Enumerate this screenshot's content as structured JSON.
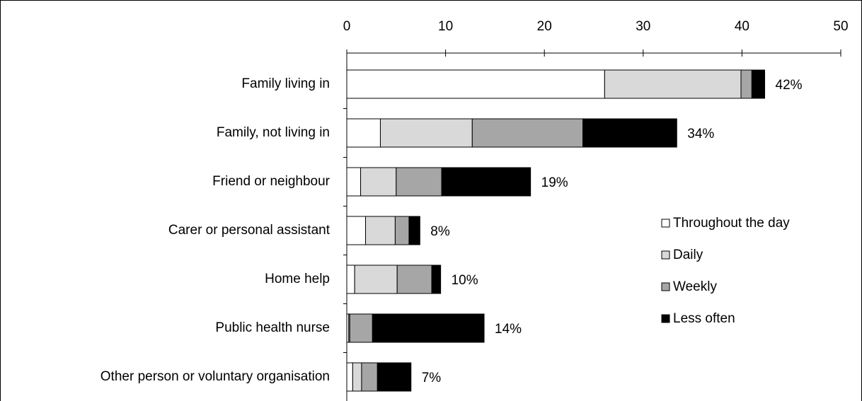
{
  "chart_data": {
    "type": "stacked_barh",
    "categories": [
      "Family living in",
      "Family, not living in",
      "Friend or neighbour",
      "Carer or personal assistant",
      "Home help",
      "Public health nurse",
      "Other person or voluntary organisation"
    ],
    "series": [
      {
        "name": "Throughout the day",
        "color": "#ffffff",
        "values": [
          26.1,
          3.4,
          1.4,
          1.9,
          0.8,
          0.2,
          0.6
        ]
      },
      {
        "name": "Daily",
        "color": "#d9d9d9",
        "values": [
          13.8,
          9.3,
          3.6,
          3.0,
          4.3,
          0.1,
          0.9
        ]
      },
      {
        "name": "Weekly",
        "color": "#a6a6a6",
        "values": [
          1.1,
          11.2,
          4.6,
          1.4,
          3.5,
          2.3,
          1.6
        ]
      },
      {
        "name": "Less often",
        "color": "#000000",
        "values": [
          1.3,
          9.5,
          9.0,
          1.1,
          0.9,
          11.3,
          3.4
        ]
      }
    ],
    "total_labels": [
      "42%",
      "34%",
      "19%",
      "8%",
      "10%",
      "14%",
      "7%"
    ],
    "xlim": [
      0,
      50
    ],
    "xticks": [
      0,
      10,
      20,
      30,
      40,
      50
    ]
  }
}
